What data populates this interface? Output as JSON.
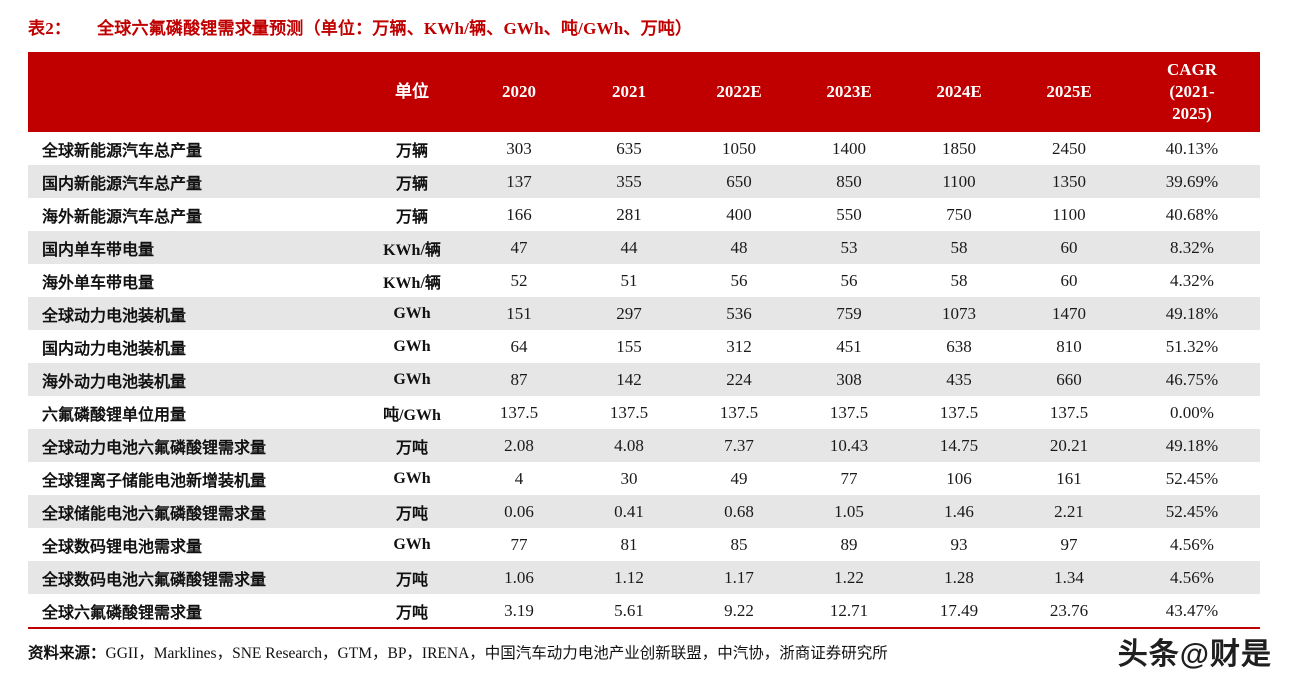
{
  "title": {
    "label": "表2：",
    "text": "全球六氟磷酸锂需求量预测（单位：万辆、KWh/辆、GWh、吨/GWh、万吨）"
  },
  "chart_data": {
    "type": "table",
    "title": "全球六氟磷酸锂需求量预测",
    "unit_note": "单位：万辆、KWh/辆、GWh、吨/GWh、万吨",
    "columns": [
      "",
      "单位",
      "2020",
      "2021",
      "2022E",
      "2023E",
      "2024E",
      "2025E",
      "CAGR\n(2021-\n2025)"
    ],
    "rows": [
      {
        "name": "全球新能源汽车总产量",
        "unit": "万辆",
        "values": [
          "303",
          "635",
          "1050",
          "1400",
          "1850",
          "2450"
        ],
        "cagr": "40.13%"
      },
      {
        "name": "国内新能源汽车总产量",
        "unit": "万辆",
        "values": [
          "137",
          "355",
          "650",
          "850",
          "1100",
          "1350"
        ],
        "cagr": "39.69%"
      },
      {
        "name": "海外新能源汽车总产量",
        "unit": "万辆",
        "values": [
          "166",
          "281",
          "400",
          "550",
          "750",
          "1100"
        ],
        "cagr": "40.68%"
      },
      {
        "name": "国内单车带电量",
        "unit": "KWh/辆",
        "values": [
          "47",
          "44",
          "48",
          "53",
          "58",
          "60"
        ],
        "cagr": "8.32%"
      },
      {
        "name": "海外单车带电量",
        "unit": "KWh/辆",
        "values": [
          "52",
          "51",
          "56",
          "56",
          "58",
          "60"
        ],
        "cagr": "4.32%"
      },
      {
        "name": "全球动力电池装机量",
        "unit": "GWh",
        "values": [
          "151",
          "297",
          "536",
          "759",
          "1073",
          "1470"
        ],
        "cagr": "49.18%"
      },
      {
        "name": "国内动力电池装机量",
        "unit": "GWh",
        "values": [
          "64",
          "155",
          "312",
          "451",
          "638",
          "810"
        ],
        "cagr": "51.32%"
      },
      {
        "name": "海外动力电池装机量",
        "unit": "GWh",
        "values": [
          "87",
          "142",
          "224",
          "308",
          "435",
          "660"
        ],
        "cagr": "46.75%"
      },
      {
        "name": "六氟磷酸锂单位用量",
        "unit": "吨/GWh",
        "values": [
          "137.5",
          "137.5",
          "137.5",
          "137.5",
          "137.5",
          "137.5"
        ],
        "cagr": "0.00%"
      },
      {
        "name": "全球动力电池六氟磷酸锂需求量",
        "unit": "万吨",
        "values": [
          "2.08",
          "4.08",
          "7.37",
          "10.43",
          "14.75",
          "20.21"
        ],
        "cagr": "49.18%"
      },
      {
        "name": "全球锂离子储能电池新增装机量",
        "unit": "GWh",
        "values": [
          "4",
          "30",
          "49",
          "77",
          "106",
          "161"
        ],
        "cagr": "52.45%"
      },
      {
        "name": "全球储能电池六氟磷酸锂需求量",
        "unit": "万吨",
        "values": [
          "0.06",
          "0.41",
          "0.68",
          "1.05",
          "1.46",
          "2.21"
        ],
        "cagr": "52.45%"
      },
      {
        "name": "全球数码锂电池需求量",
        "unit": "GWh",
        "values": [
          "77",
          "81",
          "85",
          "89",
          "93",
          "97"
        ],
        "cagr": "4.56%"
      },
      {
        "name": "全球数码电池六氟磷酸锂需求量",
        "unit": "万吨",
        "values": [
          "1.06",
          "1.12",
          "1.17",
          "1.22",
          "1.28",
          "1.34"
        ],
        "cagr": "4.56%"
      },
      {
        "name": "全球六氟磷酸锂需求量",
        "unit": "万吨",
        "values": [
          "3.19",
          "5.61",
          "9.22",
          "12.71",
          "17.49",
          "23.76"
        ],
        "cagr": "43.47%"
      }
    ]
  },
  "source": {
    "label": "资料来源：",
    "text": "GGII，Marklines，SNE Research，GTM，BP，IRENA，中国汽车动力电池产业创新联盟，中汽协，浙商证券研究所"
  },
  "watermark": "头条@财是",
  "colors": {
    "header_bg": "#C00000",
    "title": "#C00000",
    "row_alt": "#E7E6E6",
    "header_text": "#FFFFFF"
  }
}
